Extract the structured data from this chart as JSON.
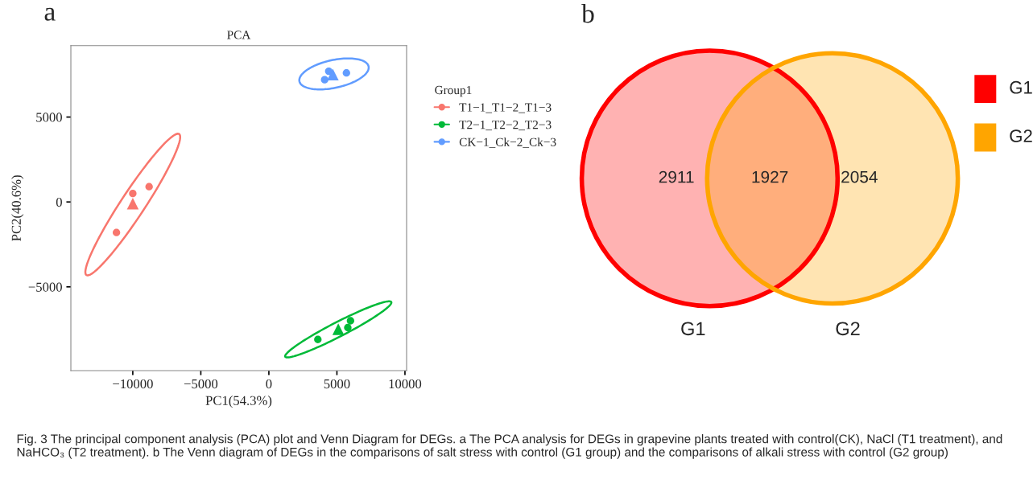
{
  "chart_data": [
    {
      "type": "scatter",
      "title": "PCA",
      "xlabel": "PC1(54.3%)",
      "ylabel": "PC2(40.6%)",
      "legend_title": "Group1",
      "legend": "right",
      "grid": false,
      "xlim": [
        -14550,
        10120
      ],
      "ylim": [
        -9935,
        9207
      ],
      "xticks": [
        {
          "value": -10000,
          "label": "−10000"
        },
        {
          "value": -5000,
          "label": "−5000"
        },
        0,
        5000,
        10000
      ],
      "yticks": [
        {
          "value": -5000,
          "label": "−5000"
        },
        0,
        5000
      ],
      "annotations": [
        "a"
      ],
      "series": [
        {
          "name": "T1−1_T1−2_T1−3",
          "color": "#f8766d",
          "marker": "circle",
          "x": [
            -11200,
            -10000,
            -8800
          ],
          "values": [
            -1800,
            500,
            900
          ]
        },
        {
          "name": "T2−1_T2−2_T2−3",
          "color": "#00ba38",
          "marker": "circle",
          "x": [
            3600,
            5800,
            6000
          ],
          "values": [
            -8100,
            -7400,
            -7000
          ]
        },
        {
          "name": "CK−1_Ck−2_Ck−3",
          "color": "#619cff",
          "marker": "circle",
          "x": [
            4100,
            4400,
            5700
          ],
          "values": [
            7200,
            7700,
            7600
          ]
        },
        {
          "color": "#f8766d",
          "marker": "triangle",
          "x": [
            -10000
          ],
          "values": [
            -100
          ]
        },
        {
          "color": "#00ba38",
          "marker": "triangle",
          "x": [
            5100
          ],
          "values": [
            -7500
          ]
        },
        {
          "color": "#619cff",
          "marker": "triangle",
          "x": [
            4700
          ],
          "values": [
            7500
          ]
        }
      ]
    },
    {
      "type": "other",
      "categories": [
        "G1",
        "G2"
      ],
      "colors": [
        "#ff0000",
        "#ffa500"
      ],
      "annotations": [
        "b",
        "Fig. 3 The principal component analysis (PCA) plot and Venn Diagram for DEGs. a The PCA analysis for DEGs in grapevine plants treated with control(CK), NaCl (T1 treatment), and NaHCO₃ (T2 treatment). b The Venn diagram of DEGs in the comparisons of salt stress with control (G1 group) and the comparisons of alkali stress with control (G2 group)",
        "2911",
        "1927",
        "2054"
      ]
    }
  ]
}
